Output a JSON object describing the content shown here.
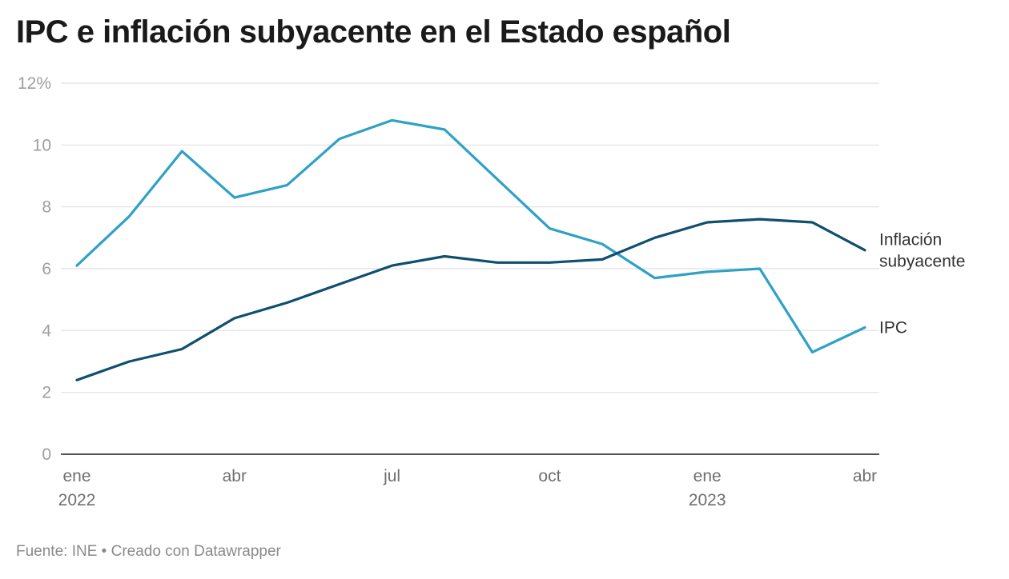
{
  "chart_data": {
    "type": "line",
    "title": "IPC e inflación subyacente en el Estado español",
    "source": "Fuente: INE • Creado con Datawrapper",
    "x": [
      "2022-01",
      "2022-02",
      "2022-03",
      "2022-04",
      "2022-05",
      "2022-06",
      "2022-07",
      "2022-08",
      "2022-09",
      "2022-10",
      "2022-11",
      "2022-12",
      "2023-01",
      "2023-02",
      "2023-03",
      "2023-04"
    ],
    "x_ticks": [
      {
        "index": 0,
        "label": "ene",
        "year": "2022"
      },
      {
        "index": 3,
        "label": "abr",
        "year": ""
      },
      {
        "index": 6,
        "label": "jul",
        "year": ""
      },
      {
        "index": 9,
        "label": "oct",
        "year": ""
      },
      {
        "index": 12,
        "label": "ene",
        "year": "2023"
      },
      {
        "index": 15,
        "label": "abr",
        "year": ""
      }
    ],
    "y_ticks": [
      {
        "value": 0,
        "label": "0"
      },
      {
        "value": 2,
        "label": "2"
      },
      {
        "value": 4,
        "label": "4"
      },
      {
        "value": 6,
        "label": "6"
      },
      {
        "value": 8,
        "label": "8"
      },
      {
        "value": 10,
        "label": "10"
      },
      {
        "value": 12,
        "label": "12%"
      }
    ],
    "ylim": [
      0,
      12
    ],
    "grid": true,
    "series": [
      {
        "name": "IPC",
        "label_lines": [
          "IPC"
        ],
        "color": "#2fa1c6",
        "values": [
          6.1,
          7.7,
          9.8,
          8.3,
          8.7,
          10.2,
          10.8,
          10.5,
          8.9,
          7.3,
          6.8,
          5.7,
          5.9,
          6.0,
          3.3,
          4.1
        ]
      },
      {
        "name": "Inflación subyacente",
        "label_lines": [
          "Inflación",
          "subyacente"
        ],
        "color": "#0f4f6f",
        "values": [
          2.4,
          3.0,
          3.4,
          4.4,
          4.9,
          5.5,
          6.1,
          6.4,
          6.2,
          6.2,
          6.3,
          7.0,
          7.5,
          7.6,
          7.5,
          6.6
        ]
      }
    ]
  }
}
